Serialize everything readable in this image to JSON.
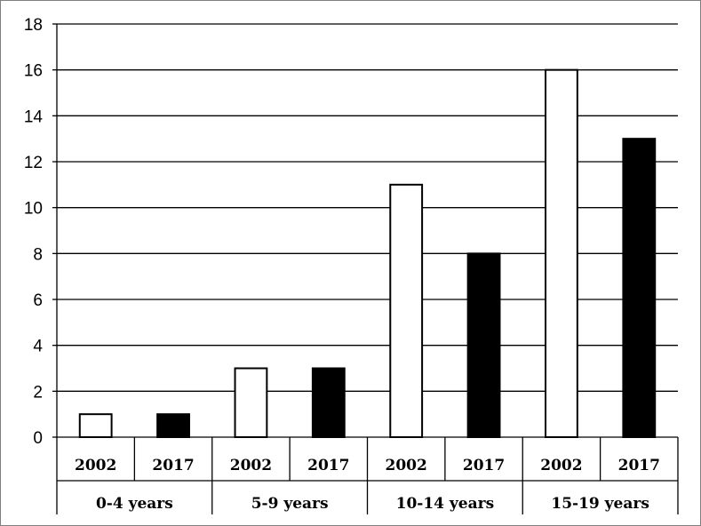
{
  "chart_data": {
    "type": "bar",
    "groups": [
      "0-4 years",
      "5-9 years",
      "10-14 years",
      "15-19 years"
    ],
    "categories": [
      "2002",
      "2017",
      "2002",
      "2017",
      "2002",
      "2017",
      "2002",
      "2017"
    ],
    "values": [
      1,
      1,
      3,
      3,
      11,
      8,
      16,
      13
    ],
    "series_by_year": [
      {
        "name": "2002",
        "values": [
          1,
          3,
          11,
          16
        ],
        "color": "#ffffff"
      },
      {
        "name": "2017",
        "values": [
          1,
          3,
          8,
          13
        ],
        "color": "#000000"
      }
    ],
    "bar_colors": [
      "#ffffff",
      "#000000",
      "#ffffff",
      "#000000",
      "#ffffff",
      "#000000",
      "#ffffff",
      "#000000"
    ],
    "title": "",
    "xlabel": "",
    "ylabel": "",
    "ylim": [
      0,
      18
    ],
    "yticks": [
      "0",
      "2",
      "4",
      "6",
      "8",
      "10",
      "12",
      "14",
      "16",
      "18"
    ],
    "grid": true,
    "legend": "none"
  }
}
